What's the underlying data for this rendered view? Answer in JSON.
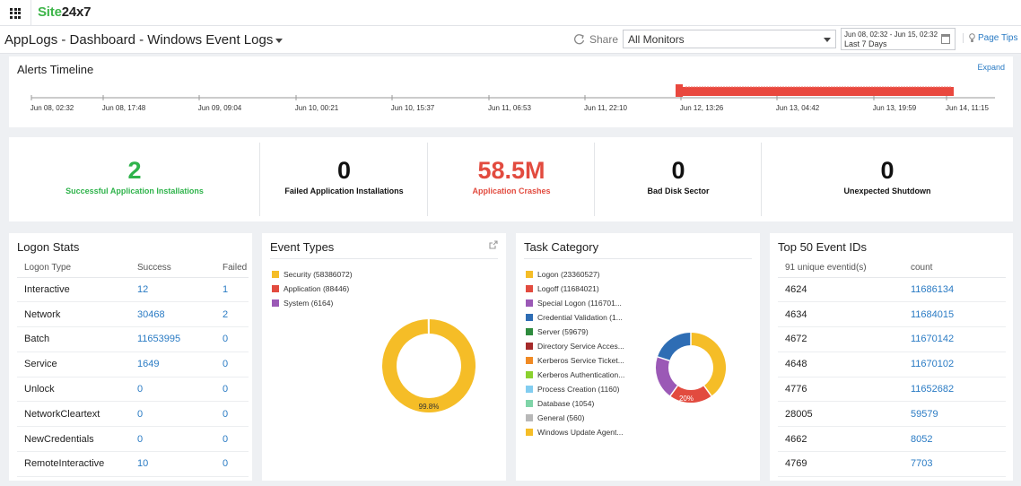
{
  "app": {
    "logo_part1": "Site",
    "logo_part2": "24x7"
  },
  "header": {
    "title": "AppLogs - Dashboard - Windows Event Logs",
    "share_label": "Share",
    "monitor_select": "All Monitors",
    "date_range": "Jun 08, 02:32 - Jun 15, 02:32",
    "date_preset": "Last 7 Days",
    "page_tips": "Page Tips"
  },
  "timeline": {
    "title": "Alerts Timeline",
    "expand": "Expand",
    "ticks": [
      "Jun 08, 02:32",
      "Jun 08, 17:48",
      "Jun 09, 09:04",
      "Jun 10, 00:21",
      "Jun 10, 15:37",
      "Jun 11, 06:53",
      "Jun 11, 22:10",
      "Jun 12, 13:26",
      "Jun 13, 04:42",
      "Jun 13, 19:59",
      "Jun 14, 11:15"
    ],
    "bar_color": "#e9483e"
  },
  "stats": [
    {
      "value": "2",
      "label": "Successful Application Installations",
      "color": "#2fb34b"
    },
    {
      "value": "0",
      "label": "Failed Application Installations",
      "color": "#111111"
    },
    {
      "value": "58.5M",
      "label": "Application Crashes",
      "color": "#e24b3f"
    },
    {
      "value": "0",
      "label": "Bad Disk Sector",
      "color": "#111111"
    },
    {
      "value": "0",
      "label": "Unexpected Shutdown",
      "color": "#111111"
    }
  ],
  "logon_stats": {
    "title": "Logon Stats",
    "columns": [
      "Logon Type",
      "Success",
      "Failed"
    ],
    "rows": [
      [
        "Interactive",
        "12",
        "1"
      ],
      [
        "Network",
        "30468",
        "2"
      ],
      [
        "Batch",
        "11653995",
        "0"
      ],
      [
        "Service",
        "1649",
        "0"
      ],
      [
        "Unlock",
        "0",
        "0"
      ],
      [
        "NetworkCleartext",
        "0",
        "0"
      ],
      [
        "NewCredentials",
        "0",
        "0"
      ],
      [
        "RemoteInteractive",
        "10",
        "0"
      ]
    ]
  },
  "event_types": {
    "title": "Event Types",
    "legend": [
      {
        "label": "Security (58386072)",
        "color": "#f5bd27"
      },
      {
        "label": "Application (88446)",
        "color": "#e24b3f"
      },
      {
        "label": "System (6164)",
        "color": "#9b59b6"
      }
    ],
    "center_label": "99.8%",
    "values": [
      58386072,
      88446,
      6164
    ]
  },
  "task_category": {
    "title": "Task Category",
    "legend": [
      {
        "label": "Logon (23360527)",
        "color": "#f5bd27"
      },
      {
        "label": "Logoff (11684021)",
        "color": "#e24b3f"
      },
      {
        "label": "Special Logon (116701...",
        "color": "#9b59b6"
      },
      {
        "label": "Credential Validation (1...",
        "color": "#2e6db4"
      },
      {
        "label": "Server (59679)",
        "color": "#2e8b3e"
      },
      {
        "label": "Directory Service Acces...",
        "color": "#a52a2a"
      },
      {
        "label": "Kerberos Service Ticket...",
        "color": "#f08a24"
      },
      {
        "label": "Kerberos Authentication...",
        "color": "#8bd12f"
      },
      {
        "label": "Process Creation (1160)",
        "color": "#82cdf0"
      },
      {
        "label": "Database (1054)",
        "color": "#7fd4a8"
      },
      {
        "label": "General (560)",
        "color": "#b8b8b8"
      },
      {
        "label": "Windows Update Agent...",
        "color": "#f5bd27"
      }
    ],
    "pct_label": "20%",
    "values": [
      23360527,
      11684021,
      11670100,
      11670142
    ]
  },
  "top_event_ids": {
    "title": "Top 50 Event IDs",
    "columns": [
      "91 unique eventid(s)",
      "count"
    ],
    "rows": [
      [
        "4624",
        "11686134"
      ],
      [
        "4634",
        "11684015"
      ],
      [
        "4672",
        "11670142"
      ],
      [
        "4648",
        "11670102"
      ],
      [
        "4776",
        "11652682"
      ],
      [
        "28005",
        "59579"
      ],
      [
        "4662",
        "8052"
      ],
      [
        "4769",
        "7703"
      ]
    ]
  }
}
